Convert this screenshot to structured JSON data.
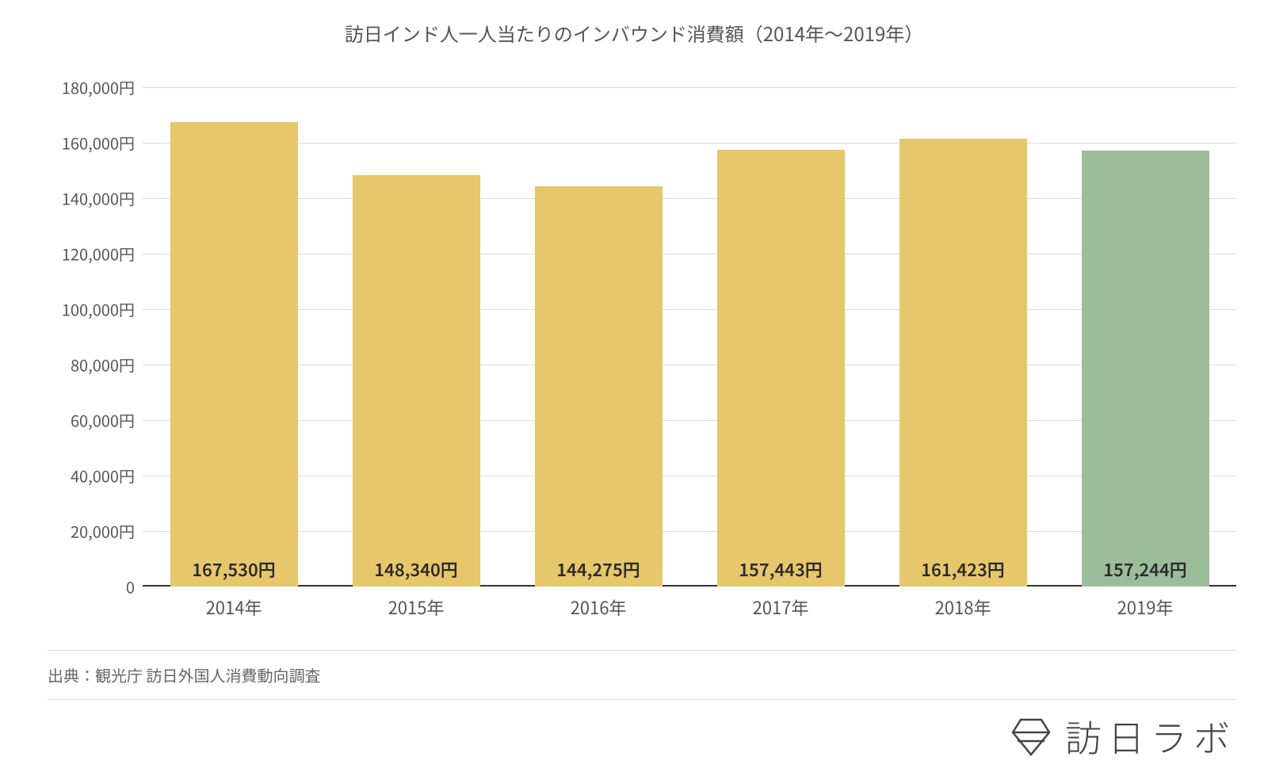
{
  "chart": {
    "type": "bar",
    "title": "訪日インド人一人当たりのインバウンド消費額（2014年〜2019年）",
    "title_fontsize": 24,
    "title_color": "#555555",
    "background_color": "#ffffff",
    "grid_color": "#dcdcdc",
    "axis_color": "#333333",
    "ylim": [
      0,
      180000
    ],
    "ytick_step": 20000,
    "yticks": [
      {
        "v": 0,
        "label": "0"
      },
      {
        "v": 20000,
        "label": "20,000円"
      },
      {
        "v": 40000,
        "label": "40,000円"
      },
      {
        "v": 60000,
        "label": "60,000円"
      },
      {
        "v": 80000,
        "label": "80,000円"
      },
      {
        "v": 100000,
        "label": "100,000円"
      },
      {
        "v": 120000,
        "label": "120,000円"
      },
      {
        "v": 140000,
        "label": "140,000円"
      },
      {
        "v": 160000,
        "label": "160,000円"
      },
      {
        "v": 180000,
        "label": "180,000円"
      }
    ],
    "ylabel_fontsize": 20,
    "ylabel_color": "#555555",
    "xlabel_fontsize": 22,
    "xlabel_color": "#555555",
    "value_fontsize": 22,
    "value_color": "#2b2b2b",
    "bar_width_ratio": 0.7,
    "categories": [
      "2014年",
      "2015年",
      "2016年",
      "2017年",
      "2018年",
      "2019年"
    ],
    "values": [
      167530,
      148340,
      144275,
      157443,
      161423,
      157244
    ],
    "value_labels": [
      "167,530円",
      "148,340円",
      "144,275円",
      "157,443円",
      "161,423円",
      "157,244円"
    ],
    "bar_colors": [
      "#e7c76c",
      "#e7c76c",
      "#e7c76c",
      "#e7c76c",
      "#e7c76c",
      "#9bbd9a"
    ]
  },
  "source": "出典：観光庁 訪日外国人消費動向調査",
  "logo": {
    "text": "訪日ラボ",
    "color": "#444444",
    "icon_color": "#444444"
  }
}
